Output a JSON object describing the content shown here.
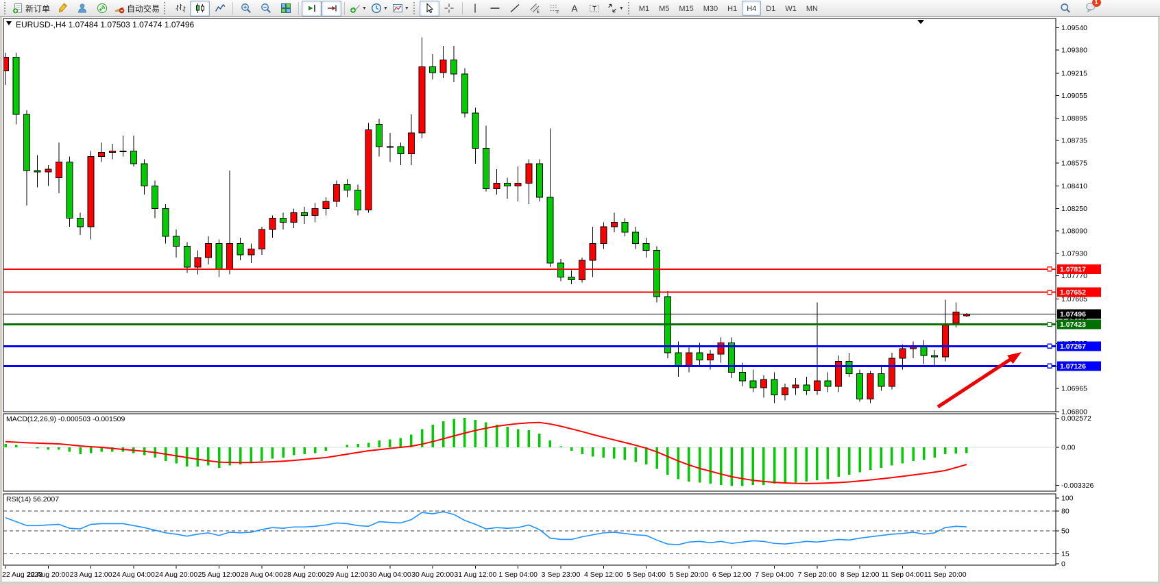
{
  "toolbar": {
    "blocks": [
      {
        "sep": "grip",
        "items": [
          {
            "icon": "new-order",
            "name": "new-order",
            "label": "新订单"
          },
          {
            "icon": "crayon",
            "name": "crayon"
          },
          {
            "icon": "community",
            "name": "community"
          },
          {
            "icon": "signals",
            "name": "signals"
          },
          {
            "icon": "autotrade",
            "name": "auto-trading",
            "label": "自动交易"
          }
        ]
      },
      {
        "sep": "grip",
        "items": [
          {
            "icon": "bars",
            "name": "bar-chart-mode"
          },
          {
            "icon": "candles",
            "name": "candlestick-mode",
            "pressed": true
          },
          {
            "icon": "linechart",
            "name": "line-chart-mode"
          }
        ]
      },
      {
        "sep": "line",
        "items": [
          {
            "icon": "zoom-in",
            "name": "zoom-in"
          },
          {
            "icon": "zoom-out",
            "name": "zoom-out"
          },
          {
            "icon": "tile-windows",
            "name": "tile-windows"
          }
        ]
      },
      {
        "sep": "line",
        "items": [
          {
            "icon": "shift-chart",
            "name": "chart-shift",
            "pressed": true
          },
          {
            "icon": "auto-scroll",
            "name": "auto-scroll",
            "pressed": true
          }
        ]
      },
      {
        "sep": "line",
        "items": [
          {
            "icon": "indicators",
            "name": "indicators-list",
            "caret": true
          },
          {
            "icon": "periods",
            "name": "periods-list",
            "caret": true
          },
          {
            "icon": "templates",
            "name": "templates-list",
            "caret": true
          }
        ]
      },
      {
        "sep": "grip",
        "items": [
          {
            "icon": "cursor",
            "name": "cursor-tool",
            "pressed": true
          },
          {
            "icon": "crosshair",
            "name": "crosshair-tool"
          }
        ]
      },
      {
        "sep": "line",
        "items": [
          {
            "icon": "vline",
            "name": "vertical-line-tool"
          },
          {
            "icon": "hline",
            "name": "horizontal-line-tool"
          },
          {
            "icon": "trendline",
            "name": "trendline-tool"
          },
          {
            "icon": "channel",
            "name": "equidistant-channel-tool"
          },
          {
            "icon": "fibonacci",
            "name": "fibonacci-tool"
          },
          {
            "icon": "text",
            "name": "text-tool"
          },
          {
            "icon": "text-label",
            "name": "text-label-tool"
          },
          {
            "icon": "arrows",
            "name": "arrows-tool",
            "caret": true
          }
        ]
      }
    ],
    "timeframes": [
      "M1",
      "M5",
      "M15",
      "M30",
      "H1",
      "H4",
      "D1",
      "W1",
      "MN"
    ],
    "active_timeframe": "H4",
    "right_items": [
      {
        "icon": "search",
        "name": "search"
      },
      {
        "icon": "chat",
        "name": "notifications",
        "badge": "1"
      }
    ]
  },
  "window": {
    "symbol": "EURUSD-,H4",
    "ohlc": {
      "open": "1.07484",
      "high": "1.07503",
      "low": "1.07474",
      "close": "1.07496"
    }
  },
  "chart_data": {
    "type": "candlestick",
    "symbol": "EURUSD-",
    "timeframe": "H4",
    "bull_color": "#ff0000",
    "bear_color": "#00cc00",
    "wick_color": "#000000",
    "price_axis_ticks": [
      1.0954,
      1.0938,
      1.09215,
      1.09055,
      1.08895,
      1.08735,
      1.08575,
      1.0841,
      1.0825,
      1.0809,
      1.0793,
      1.0777,
      1.07605,
      1.07445,
      1.07285,
      1.07126,
      1.06965,
      1.068
    ],
    "ylim": [
      1.068,
      1.096
    ],
    "time_labels": [
      "22 Aug 2023",
      "22 Aug 20:00",
      "23 Aug 12:00",
      "24 Aug 04:00",
      "24 Aug 20:00",
      "25 Aug 12:00",
      "28 Aug 04:00",
      "28 Aug 20:00",
      "29 Aug 12:00",
      "30 Aug 04:00",
      "30 Aug 20:00",
      "31 Aug 12:00",
      "1 Sep 04:00",
      "3 Sep 23:00",
      "4 Sep 12:00",
      "5 Sep 04:00",
      "5 Sep 20:00",
      "6 Sep 12:00",
      "7 Sep 04:00",
      "7 Sep 20:00",
      "8 Sep 12:00",
      "11 Sep 04:00",
      "11 Sep 20:00"
    ],
    "candles": [
      [
        1.0923,
        1.0936,
        1.0913,
        1.0933
      ],
      [
        1.0933,
        1.0936,
        1.0885,
        1.0892
      ],
      [
        1.0892,
        1.0895,
        1.0827,
        1.0852
      ],
      [
        1.0852,
        1.0863,
        1.084,
        1.0851
      ],
      [
        1.0851,
        1.0856,
        1.0841,
        1.0853
      ],
      [
        1.0847,
        1.0872,
        1.0836,
        1.0858
      ],
      [
        1.0858,
        1.0862,
        1.0812,
        1.0818
      ],
      [
        1.0818,
        1.0822,
        1.0806,
        1.0812
      ],
      [
        1.0812,
        1.0866,
        1.0803,
        1.0862
      ],
      [
        1.0862,
        1.0872,
        1.0858,
        1.0865
      ],
      [
        1.0865,
        1.0871,
        1.086,
        1.0866
      ],
      [
        1.0866,
        1.0877,
        1.0862,
        1.0866
      ],
      [
        1.0866,
        1.0877,
        1.0855,
        1.0857
      ],
      [
        1.0857,
        1.086,
        1.0835,
        1.0841
      ],
      [
        1.0841,
        1.0845,
        1.0818,
        1.0825
      ],
      [
        1.0825,
        1.0828,
        1.08,
        1.0805
      ],
      [
        1.0805,
        1.081,
        1.079,
        1.0798
      ],
      [
        1.0798,
        1.0801,
        1.0779,
        1.0783
      ],
      [
        1.0783,
        1.0795,
        1.0778,
        1.079
      ],
      [
        1.079,
        1.0805,
        1.0785,
        1.08
      ],
      [
        1.08,
        1.0803,
        1.0776,
        1.0782
      ],
      [
        1.0782,
        1.0852,
        1.0778,
        1.08
      ],
      [
        1.08,
        1.0804,
        1.0788,
        1.0792
      ],
      [
        1.0792,
        1.08,
        1.0786,
        1.0796
      ],
      [
        1.0796,
        1.0812,
        1.0792,
        1.081
      ],
      [
        1.081,
        1.082,
        1.0804,
        1.0818
      ],
      [
        1.0818,
        1.0822,
        1.081,
        1.0815
      ],
      [
        1.0815,
        1.0825,
        1.0811,
        1.0822
      ],
      [
        1.0822,
        1.0826,
        1.0814,
        1.082
      ],
      [
        1.082,
        1.0829,
        1.0815,
        1.0825
      ],
      [
        1.0825,
        1.0833,
        1.082,
        1.083
      ],
      [
        1.083,
        1.0845,
        1.0826,
        1.0842
      ],
      [
        1.0842,
        1.0846,
        1.0833,
        1.0838
      ],
      [
        1.0838,
        1.0842,
        1.082,
        1.0824
      ],
      [
        1.0824,
        1.0886,
        1.0822,
        1.0881
      ],
      [
        1.0885,
        1.0889,
        1.0862,
        1.0869
      ],
      [
        1.0869,
        1.0879,
        1.0858,
        1.0869
      ],
      [
        1.0869,
        1.0872,
        1.0856,
        1.0864
      ],
      [
        1.0864,
        1.0892,
        1.0856,
        1.0879
      ],
      [
        1.0879,
        1.0947,
        1.0875,
        1.0926
      ],
      [
        1.0926,
        1.0935,
        1.0917,
        1.0922
      ],
      [
        1.0922,
        1.0941,
        1.0918,
        1.0931
      ],
      [
        1.0931,
        1.0941,
        1.0915,
        1.0921
      ],
      [
        1.0921,
        1.0925,
        1.089,
        1.0893
      ],
      [
        1.0893,
        1.0897,
        1.0857,
        1.0868
      ],
      [
        1.0868,
        1.0884,
        1.0837,
        1.0839
      ],
      [
        1.0839,
        1.0853,
        1.0835,
        1.0843
      ],
      [
        1.0843,
        1.0847,
        1.0832,
        1.0841
      ],
      [
        1.0841,
        1.0855,
        1.083,
        1.0843
      ],
      [
        1.0843,
        1.086,
        1.0828,
        1.0857
      ],
      [
        1.0857,
        1.086,
        1.083,
        1.0833
      ],
      [
        1.0833,
        1.0882,
        1.0783,
        1.0786
      ],
      [
        1.0786,
        1.0789,
        1.0773,
        1.0776
      ],
      [
        1.0776,
        1.0781,
        1.0771,
        1.0774
      ],
      [
        1.0774,
        1.079,
        1.0772,
        1.0788
      ],
      [
        1.0788,
        1.0812,
        1.0776,
        1.08
      ],
      [
        1.08,
        1.0815,
        1.0796,
        1.0812
      ],
      [
        1.0812,
        1.0822,
        1.0808,
        1.0815
      ],
      [
        1.0815,
        1.0818,
        1.0805,
        1.0808
      ],
      [
        1.0808,
        1.0812,
        1.0796,
        1.08
      ],
      [
        1.08,
        1.0804,
        1.079,
        1.0795
      ],
      [
        1.0795,
        1.0798,
        1.0758,
        1.0762
      ],
      [
        1.0762,
        1.0766,
        1.0718,
        1.0722
      ],
      [
        1.0722,
        1.073,
        1.0705,
        1.0712
      ],
      [
        1.0712,
        1.0726,
        1.0708,
        1.0722
      ],
      [
        1.0722,
        1.0729,
        1.0712,
        1.0717
      ],
      [
        1.0717,
        1.0724,
        1.071,
        1.0721
      ],
      [
        1.0721,
        1.0733,
        1.0715,
        1.0729
      ],
      [
        1.0729,
        1.0733,
        1.0704,
        1.0708
      ],
      [
        1.0708,
        1.0715,
        1.0698,
        1.0702
      ],
      [
        1.0702,
        1.071,
        1.0694,
        1.0697
      ],
      [
        1.0697,
        1.0706,
        1.069,
        1.0703
      ],
      [
        1.0703,
        1.0708,
        1.0686,
        1.0692
      ],
      [
        1.0692,
        1.07,
        1.0688,
        1.0697
      ],
      [
        1.0697,
        1.0704,
        1.0692,
        1.0699
      ],
      [
        1.0699,
        1.0705,
        1.0692,
        1.0695
      ],
      [
        1.0695,
        1.0758,
        1.0692,
        1.0702
      ],
      [
        1.0702,
        1.0708,
        1.0694,
        1.0698
      ],
      [
        1.0698,
        1.072,
        1.0694,
        1.0716
      ],
      [
        1.0716,
        1.0722,
        1.0705,
        1.0707
      ],
      [
        1.0707,
        1.071,
        1.0687,
        1.0689
      ],
      [
        1.0689,
        1.0709,
        1.0686,
        1.0707
      ],
      [
        1.0707,
        1.0712,
        1.0695,
        1.0698
      ],
      [
        1.0698,
        1.0722,
        1.0696,
        1.0718
      ],
      [
        1.0718,
        1.0728,
        1.071,
        1.0725
      ],
      [
        1.0725,
        1.073,
        1.0718,
        1.0727
      ],
      [
        1.0727,
        1.0731,
        1.0714,
        1.072
      ],
      [
        1.072,
        1.0724,
        1.0712,
        1.0719
      ],
      [
        1.0719,
        1.076,
        1.0716,
        1.0742
      ],
      [
        1.0743,
        1.0758,
        1.074,
        1.0751
      ],
      [
        1.07484,
        1.07503,
        1.07474,
        1.07496
      ]
    ],
    "hlines": [
      {
        "price": 1.07817,
        "color": "#ff0000",
        "width": 2,
        "marker": true
      },
      {
        "price": 1.07652,
        "color": "#ff0000",
        "width": 2,
        "marker": true
      },
      {
        "price": 1.07496,
        "color": "#000000",
        "width": 1,
        "marker": false,
        "bid": true
      },
      {
        "price": 1.07423,
        "color": "#007000",
        "width": 3,
        "marker": true
      },
      {
        "price": 1.07267,
        "color": "#0000ff",
        "width": 3,
        "marker": true
      },
      {
        "price": 1.07126,
        "color": "#0000ff",
        "width": 3,
        "marker": true
      }
    ],
    "arrow": {
      "color": "#ee0000",
      "from": [
        1368,
        594
      ],
      "to": [
        1490,
        514
      ]
    },
    "indicators": [
      {
        "name": "MACD",
        "label": "MACD(12,26,9)",
        "values_text": "-0.000503 -0.001509",
        "hist_color": "#00cc00",
        "signal_color": "#ff0000",
        "axis_ticks": [
          {
            "v": 0.002572,
            "t": "0.002572"
          },
          {
            "v": 0,
            "t": "0.00"
          },
          {
            "v": -0.003326,
            "t": "-0.003326"
          }
        ],
        "histogram": [
          0.0003,
          0.0002,
          0,
          -0.0001,
          -0.0002,
          -0.0002,
          -0.0004,
          -0.0006,
          -0.0005,
          -0.0004,
          -0.0004,
          -0.0004,
          -0.0005,
          -0.0007,
          -0.0009,
          -0.0012,
          -0.0014,
          -0.0017,
          -0.0017,
          -0.0016,
          -0.0018,
          -0.0016,
          -0.0015,
          -0.0014,
          -0.0012,
          -0.001,
          -0.0009,
          -0.0007,
          -0.0006,
          -0.0005,
          -0.0003,
          0,
          0.0002,
          0.0003,
          0.0004,
          0.0006,
          0.0007,
          0.0008,
          0.0011,
          0.0016,
          0.002,
          0.0023,
          0.0025,
          0.0026,
          0.0024,
          0.0022,
          0.002,
          0.0018,
          0.0016,
          0.0015,
          0.0012,
          0.0006,
          0.0001,
          -0.0003,
          -0.0006,
          -0.0008,
          -0.0009,
          -0.001,
          -0.0011,
          -0.0013,
          -0.0015,
          -0.0019,
          -0.0024,
          -0.0028,
          -0.003,
          -0.0031,
          -0.0032,
          -0.0033,
          -0.0034,
          -0.0034,
          -0.0033,
          -0.0033,
          -0.0032,
          -0.0032,
          -0.0031,
          -0.003,
          -0.0029,
          -0.0028,
          -0.0026,
          -0.0024,
          -0.0022,
          -0.002,
          -0.0018,
          -0.0016,
          -0.0014,
          -0.0012,
          -0.0011,
          -0.0009,
          -0.0006,
          -0.00055,
          -0.000503
        ],
        "signal": [
          0.0005,
          0.00045,
          0.0004,
          0.00037,
          0.00033,
          0.0003,
          0.00022,
          0.00012,
          5e-05,
          0,
          -0.0001,
          -0.00018,
          -0.00026,
          -0.00035,
          -0.00045,
          -0.0006,
          -0.00075,
          -0.0009,
          -0.00105,
          -0.00118,
          -0.0013,
          -0.00133,
          -0.00134,
          -0.00133,
          -0.0013,
          -0.00127,
          -0.00122,
          -0.00115,
          -0.00107,
          -0.00098,
          -0.0009,
          -0.00075,
          -0.0006,
          -0.00045,
          -0.0003,
          -0.0002,
          -0.0001,
          0,
          0.0001,
          0.00028,
          0.0005,
          0.00075,
          0.001,
          0.00125,
          0.00148,
          0.00168,
          0.00185,
          0.00198,
          0.00208,
          0.00215,
          0.00218,
          0.00205,
          0.00185,
          0.00162,
          0.00138,
          0.00112,
          0.00088,
          0.00065,
          0.00042,
          0.00018,
          -8e-05,
          -0.0004,
          -0.0008,
          -0.0012,
          -0.00155,
          -0.00185,
          -0.0021,
          -0.00235,
          -0.00258,
          -0.00275,
          -0.0029,
          -0.003,
          -0.00308,
          -0.00313,
          -0.00317,
          -0.00318,
          -0.00317,
          -0.00314,
          -0.0031,
          -0.00304,
          -0.00296,
          -0.00287,
          -0.00277,
          -0.00266,
          -0.00255,
          -0.00243,
          -0.00231,
          -0.00218,
          -0.00204,
          -0.00178,
          -0.001509
        ]
      },
      {
        "name": "RSI",
        "label": "RSI(14)",
        "value_text": "56.2007",
        "color": "#1e90ff",
        "levels": [
          80,
          50,
          15
        ],
        "axis_ticks": [
          100,
          80,
          50,
          15,
          0
        ],
        "values": [
          70,
          64,
          58,
          58,
          59,
          60,
          54,
          53,
          60,
          61,
          61,
          61,
          58,
          55,
          51,
          47,
          45,
          42,
          45,
          47,
          43,
          48,
          47,
          48,
          52,
          55,
          54,
          56,
          56,
          57,
          59,
          62,
          61,
          58,
          57,
          64,
          63,
          62,
          67,
          78,
          76,
          79,
          75,
          66,
          60,
          53,
          55,
          54,
          55,
          59,
          52,
          39,
          37,
          37,
          41,
          44,
          47,
          48,
          46,
          44,
          43,
          36,
          30,
          29,
          33,
          34,
          32,
          34,
          31,
          33,
          35,
          34,
          31,
          30,
          32,
          34,
          33,
          35,
          37,
          36,
          39,
          41,
          43,
          45,
          46,
          48,
          45,
          47,
          55,
          57,
          56.2
        ]
      }
    ]
  }
}
